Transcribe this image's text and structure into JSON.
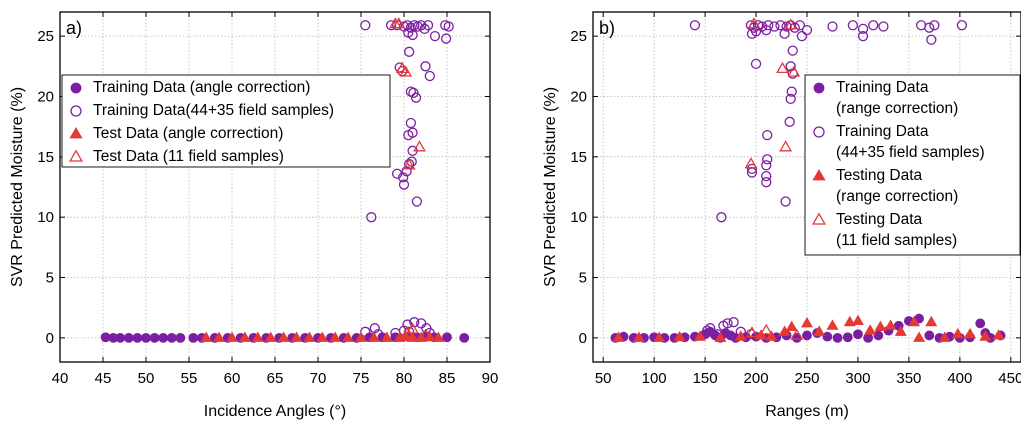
{
  "colors": {
    "training": "#7B1FA2",
    "test": "#E53935",
    "axis": "#000000",
    "grid": "#b8b8b8"
  },
  "chart_data": [
    {
      "type": "scatter",
      "panel_label": "a)",
      "xlabel": "Incidence Angles (°)",
      "ylabel": "SVR Predicted Moisture (%)",
      "xlim": [
        40,
        90
      ],
      "ylim": [
        -2,
        27
      ],
      "xticks": [
        40,
        45,
        50,
        55,
        60,
        65,
        70,
        75,
        80,
        85,
        90
      ],
      "yticks": [
        0,
        5,
        10,
        15,
        20,
        25
      ],
      "grid": "dotted",
      "legend_position": "left",
      "series": [
        {
          "name": "Training Data (angle correction)",
          "marker": "circle",
          "fill": "filled",
          "color": "#7B1FA2",
          "points": [
            [
              45.3,
              0.05
            ],
            [
              46.2,
              0.0
            ],
            [
              47.0,
              0.0
            ],
            [
              48.0,
              0.0
            ],
            [
              49.0,
              0.0
            ],
            [
              50.0,
              0.0
            ],
            [
              51.0,
              0.0
            ],
            [
              52.0,
              0.0
            ],
            [
              53.0,
              0.0
            ],
            [
              54.0,
              0.0
            ],
            [
              55.5,
              0.0
            ],
            [
              56.5,
              0.0
            ],
            [
              58.0,
              0.0
            ],
            [
              59.5,
              0.0
            ],
            [
              61.0,
              0.0
            ],
            [
              62.5,
              0.0
            ],
            [
              64.0,
              0.0
            ],
            [
              65.5,
              0.0
            ],
            [
              67.0,
              0.0
            ],
            [
              68.5,
              0.0
            ],
            [
              70.0,
              0.0
            ],
            [
              71.5,
              0.0
            ],
            [
              73.0,
              0.0
            ],
            [
              74.5,
              0.0
            ],
            [
              76.0,
              0.05
            ],
            [
              77.5,
              0.05
            ],
            [
              79.0,
              0.05
            ],
            [
              80.5,
              0.1
            ],
            [
              81.5,
              0.05
            ],
            [
              82.5,
              0.1
            ],
            [
              83.5,
              0.05
            ],
            [
              85.0,
              0.05
            ],
            [
              87.0,
              0.0
            ]
          ]
        },
        {
          "name": "Training Data(44+35 field samples)",
          "marker": "circle",
          "fill": "open",
          "color": "#7B1FA2",
          "points": [
            [
              75.5,
              25.9
            ],
            [
              78.5,
              25.9
            ],
            [
              79.2,
              25.9
            ],
            [
              80.0,
              25.8
            ],
            [
              80.4,
              25.9
            ],
            [
              80.8,
              25.7
            ],
            [
              81.2,
              25.9
            ],
            [
              81.6,
              25.8
            ],
            [
              82.0,
              25.9
            ],
            [
              82.4,
              25.6
            ],
            [
              82.8,
              25.9
            ],
            [
              84.8,
              25.9
            ],
            [
              85.2,
              25.8
            ],
            [
              80.5,
              25.3
            ],
            [
              81.0,
              25.1
            ],
            [
              83.6,
              25.0
            ],
            [
              84.9,
              24.8
            ],
            [
              80.6,
              23.7
            ],
            [
              79.5,
              22.4
            ],
            [
              82.5,
              22.5
            ],
            [
              79.8,
              22.1
            ],
            [
              83.0,
              21.7
            ],
            [
              80.8,
              20.4
            ],
            [
              81.1,
              20.3
            ],
            [
              81.4,
              19.9
            ],
            [
              80.8,
              17.8
            ],
            [
              81.0,
              17.0
            ],
            [
              80.5,
              16.8
            ],
            [
              81.0,
              15.5
            ],
            [
              80.9,
              14.6
            ],
            [
              80.6,
              14.4
            ],
            [
              80.3,
              13.8
            ],
            [
              79.2,
              13.6
            ],
            [
              79.9,
              13.3
            ],
            [
              80.0,
              12.7
            ],
            [
              81.5,
              11.3
            ],
            [
              76.2,
              10.0
            ],
            [
              75.5,
              0.5
            ],
            [
              76.6,
              0.8
            ],
            [
              77.0,
              0.3
            ],
            [
              79.0,
              0.4
            ],
            [
              80.0,
              0.6
            ],
            [
              80.4,
              1.1
            ],
            [
              81.2,
              1.3
            ],
            [
              82.0,
              1.2
            ],
            [
              82.6,
              0.8
            ],
            [
              83.0,
              0.4
            ],
            [
              80.6,
              0.5
            ]
          ]
        },
        {
          "name": "Test Data (angle correction)",
          "marker": "triangle",
          "fill": "filled",
          "color": "#E53935",
          "points": [
            [
              57.0,
              0.0
            ],
            [
              58.5,
              0.0
            ],
            [
              60.0,
              0.0
            ],
            [
              61.5,
              0.0
            ],
            [
              63.0,
              0.0
            ],
            [
              64.5,
              0.0
            ],
            [
              66.0,
              0.0
            ],
            [
              67.5,
              0.0
            ],
            [
              69.0,
              0.0
            ],
            [
              70.5,
              0.0
            ],
            [
              72.0,
              0.0
            ],
            [
              73.5,
              0.0
            ],
            [
              75.0,
              0.0
            ],
            [
              76.5,
              0.0
            ],
            [
              78.0,
              0.0
            ],
            [
              79.5,
              0.0
            ],
            [
              80.2,
              0.1
            ],
            [
              81.0,
              0.0
            ],
            [
              82.0,
              0.0
            ],
            [
              83.0,
              0.05
            ],
            [
              84.0,
              0.0
            ]
          ]
        },
        {
          "name": "Test Data (11 field samples)",
          "marker": "triangle",
          "fill": "open",
          "color": "#E53935",
          "points": [
            [
              79.0,
              26.0
            ],
            [
              79.4,
              26.0
            ],
            [
              79.8,
              22.3
            ],
            [
              80.2,
              22.0
            ],
            [
              81.8,
              15.8
            ],
            [
              80.6,
              14.3
            ],
            [
              80.4,
              0.4
            ],
            [
              81.0,
              0.7
            ],
            [
              82.5,
              0.2
            ]
          ]
        }
      ]
    },
    {
      "type": "scatter",
      "panel_label": "b)",
      "xlabel": "Ranges (m)",
      "ylabel": "SVR Predicted Moisture (%)",
      "xlim": [
        40,
        460
      ],
      "ylim": [
        -2,
        27
      ],
      "xticks": [
        50,
        100,
        150,
        200,
        250,
        300,
        350,
        400,
        450
      ],
      "yticks": [
        0,
        5,
        10,
        15,
        20,
        25
      ],
      "grid": "dotted",
      "legend_position": "right",
      "series": [
        {
          "name": "Training Data (range correction)",
          "display_lines": [
            "Training Data",
            "(range correction)"
          ],
          "marker": "circle",
          "fill": "filled",
          "color": "#7B1FA2",
          "points": [
            [
              62,
              0.0
            ],
            [
              70,
              0.1
            ],
            [
              80,
              0.0
            ],
            [
              90,
              0.0
            ],
            [
              100,
              0.05
            ],
            [
              110,
              0.0
            ],
            [
              120,
              0.0
            ],
            [
              130,
              0.05
            ],
            [
              140,
              0.1
            ],
            [
              150,
              0.3
            ],
            [
              155,
              0.5
            ],
            [
              160,
              0.2
            ],
            [
              165,
              0.0
            ],
            [
              170,
              0.4
            ],
            [
              175,
              0.2
            ],
            [
              180,
              0.0
            ],
            [
              190,
              0.05
            ],
            [
              200,
              0.1
            ],
            [
              210,
              0.0
            ],
            [
              220,
              0.05
            ],
            [
              230,
              0.2
            ],
            [
              240,
              0.0
            ],
            [
              250,
              0.2
            ],
            [
              260,
              0.4
            ],
            [
              270,
              0.1
            ],
            [
              280,
              0.0
            ],
            [
              290,
              0.05
            ],
            [
              300,
              0.3
            ],
            [
              310,
              0.0
            ],
            [
              320,
              0.2
            ],
            [
              330,
              0.6
            ],
            [
              340,
              1.0
            ],
            [
              350,
              1.4
            ],
            [
              360,
              1.6
            ],
            [
              370,
              0.2
            ],
            [
              380,
              0.0
            ],
            [
              390,
              0.1
            ],
            [
              400,
              0.0
            ],
            [
              410,
              0.05
            ],
            [
              420,
              1.2
            ],
            [
              425,
              0.4
            ],
            [
              430,
              0.0
            ],
            [
              440,
              0.2
            ]
          ]
        },
        {
          "name": "Training Data (44+35 field samples)",
          "display_lines": [
            "Training Data",
            "(44+35 field samples)"
          ],
          "marker": "circle",
          "fill": "open",
          "color": "#7B1FA2",
          "points": [
            [
              140,
              25.9
            ],
            [
              195,
              25.9
            ],
            [
              198,
              25.7
            ],
            [
              202,
              25.9
            ],
            [
              206,
              25.8
            ],
            [
              212,
              25.9
            ],
            [
              218,
              25.8
            ],
            [
              224,
              25.9
            ],
            [
              230,
              25.8
            ],
            [
              234,
              25.9
            ],
            [
              238,
              25.7
            ],
            [
              243,
              25.9
            ],
            [
              250,
              25.5
            ],
            [
              275,
              25.8
            ],
            [
              295,
              25.9
            ],
            [
              305,
              25.6
            ],
            [
              315,
              25.9
            ],
            [
              325,
              25.8
            ],
            [
              362,
              25.9
            ],
            [
              370,
              25.7
            ],
            [
              375,
              25.9
            ],
            [
              402,
              25.9
            ],
            [
              196,
              25.2
            ],
            [
              200,
              25.4
            ],
            [
              210,
              25.5
            ],
            [
              228,
              25.2
            ],
            [
              245,
              25.0
            ],
            [
              305,
              25.0
            ],
            [
              372,
              24.7
            ],
            [
              236,
              23.8
            ],
            [
              200,
              22.7
            ],
            [
              234,
              22.5
            ],
            [
              236,
              21.9
            ],
            [
              235,
              20.4
            ],
            [
              234,
              19.8
            ],
            [
              233,
              17.9
            ],
            [
              211,
              16.8
            ],
            [
              211,
              14.8
            ],
            [
              210,
              14.3
            ],
            [
              196,
              14.0
            ],
            [
              196,
              13.7
            ],
            [
              210,
              13.4
            ],
            [
              210,
              12.9
            ],
            [
              229,
              11.3
            ],
            [
              166,
              10.0
            ],
            [
              152,
              0.6
            ],
            [
              155,
              0.8
            ],
            [
              162,
              0.3
            ],
            [
              168,
              1.0
            ],
            [
              172,
              1.2
            ],
            [
              178,
              1.3
            ],
            [
              185,
              0.5
            ],
            [
              195,
              0.3
            ]
          ]
        },
        {
          "name": "Testing Data (range correction)",
          "display_lines": [
            "Testing Data",
            "(range correction)"
          ],
          "marker": "triangle",
          "fill": "filled",
          "color": "#E53935",
          "points": [
            [
              65,
              0.0
            ],
            [
              85,
              0.0
            ],
            [
              105,
              0.0
            ],
            [
              125,
              0.05
            ],
            [
              145,
              0.1
            ],
            [
              165,
              0.0
            ],
            [
              185,
              0.1
            ],
            [
              205,
              0.2
            ],
            [
              215,
              0.1
            ],
            [
              228,
              0.5
            ],
            [
              235,
              0.9
            ],
            [
              250,
              1.2
            ],
            [
              262,
              0.5
            ],
            [
              275,
              1.0
            ],
            [
              292,
              1.3
            ],
            [
              300,
              1.4
            ],
            [
              312,
              0.6
            ],
            [
              322,
              0.9
            ],
            [
              332,
              1.0
            ],
            [
              342,
              0.5
            ],
            [
              355,
              1.3
            ],
            [
              360,
              0.0
            ],
            [
              372,
              1.3
            ],
            [
              385,
              0.0
            ],
            [
              398,
              0.3
            ],
            [
              410,
              0.3
            ],
            [
              425,
              0.1
            ],
            [
              438,
              0.2
            ]
          ]
        },
        {
          "name": "Testing Data (11 field samples)",
          "display_lines": [
            "Testing Data",
            "(11 field samples)"
          ],
          "marker": "triangle",
          "fill": "open",
          "color": "#E53935",
          "points": [
            [
              198,
              26.0
            ],
            [
              234,
              25.9
            ],
            [
              226,
              22.3
            ],
            [
              237,
              22.0
            ],
            [
              229,
              15.8
            ],
            [
              195,
              14.4
            ],
            [
              196,
              0.4
            ],
            [
              210,
              0.6
            ],
            [
              240,
              0.2
            ]
          ]
        }
      ]
    }
  ]
}
